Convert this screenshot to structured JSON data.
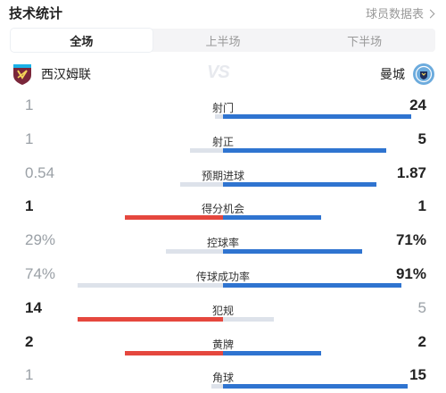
{
  "header": {
    "title": "技术统计",
    "link_label": "球员数据表"
  },
  "tabs": [
    {
      "label": "全场",
      "active": true
    },
    {
      "label": "上半场",
      "active": false
    },
    {
      "label": "下半场",
      "active": false
    }
  ],
  "teams": {
    "home": {
      "name": "西汉姆联",
      "color": "#7a263a"
    },
    "away": {
      "name": "曼城",
      "color": "#6cabdd"
    },
    "vs": "VS"
  },
  "colors": {
    "blue": "#2f74d0",
    "red": "#e5473e",
    "light": "#dde2ea"
  },
  "stats": [
    {
      "label": "射门",
      "home": "1",
      "away": "24",
      "home_share": 0.04,
      "away_share": 0.96,
      "leader": "away"
    },
    {
      "label": "射正",
      "home": "1",
      "away": "5",
      "home_share": 0.17,
      "away_share": 0.83,
      "leader": "away"
    },
    {
      "label": "预期进球",
      "home": "0.54",
      "away": "1.87",
      "home_share": 0.22,
      "away_share": 0.78,
      "leader": "away"
    },
    {
      "label": "得分机会",
      "home": "1",
      "away": "1",
      "home_share": 0.5,
      "away_share": 0.5,
      "leader": "tie"
    },
    {
      "label": "控球率",
      "home": "29%",
      "away": "71%",
      "home_share": 0.29,
      "away_share": 0.71,
      "leader": "away"
    },
    {
      "label": "传球成功率",
      "home": "74%",
      "away": "91%",
      "home_share": 0.74,
      "away_share": 0.91,
      "leader": "away"
    },
    {
      "label": "犯规",
      "home": "14",
      "away": "5",
      "home_share": 0.74,
      "away_share": 0.26,
      "leader": "home"
    },
    {
      "label": "黄牌",
      "home": "2",
      "away": "2",
      "home_share": 0.5,
      "away_share": 0.5,
      "leader": "tie"
    },
    {
      "label": "角球",
      "home": "1",
      "away": "15",
      "home_share": 0.06,
      "away_share": 0.94,
      "leader": "away"
    }
  ]
}
